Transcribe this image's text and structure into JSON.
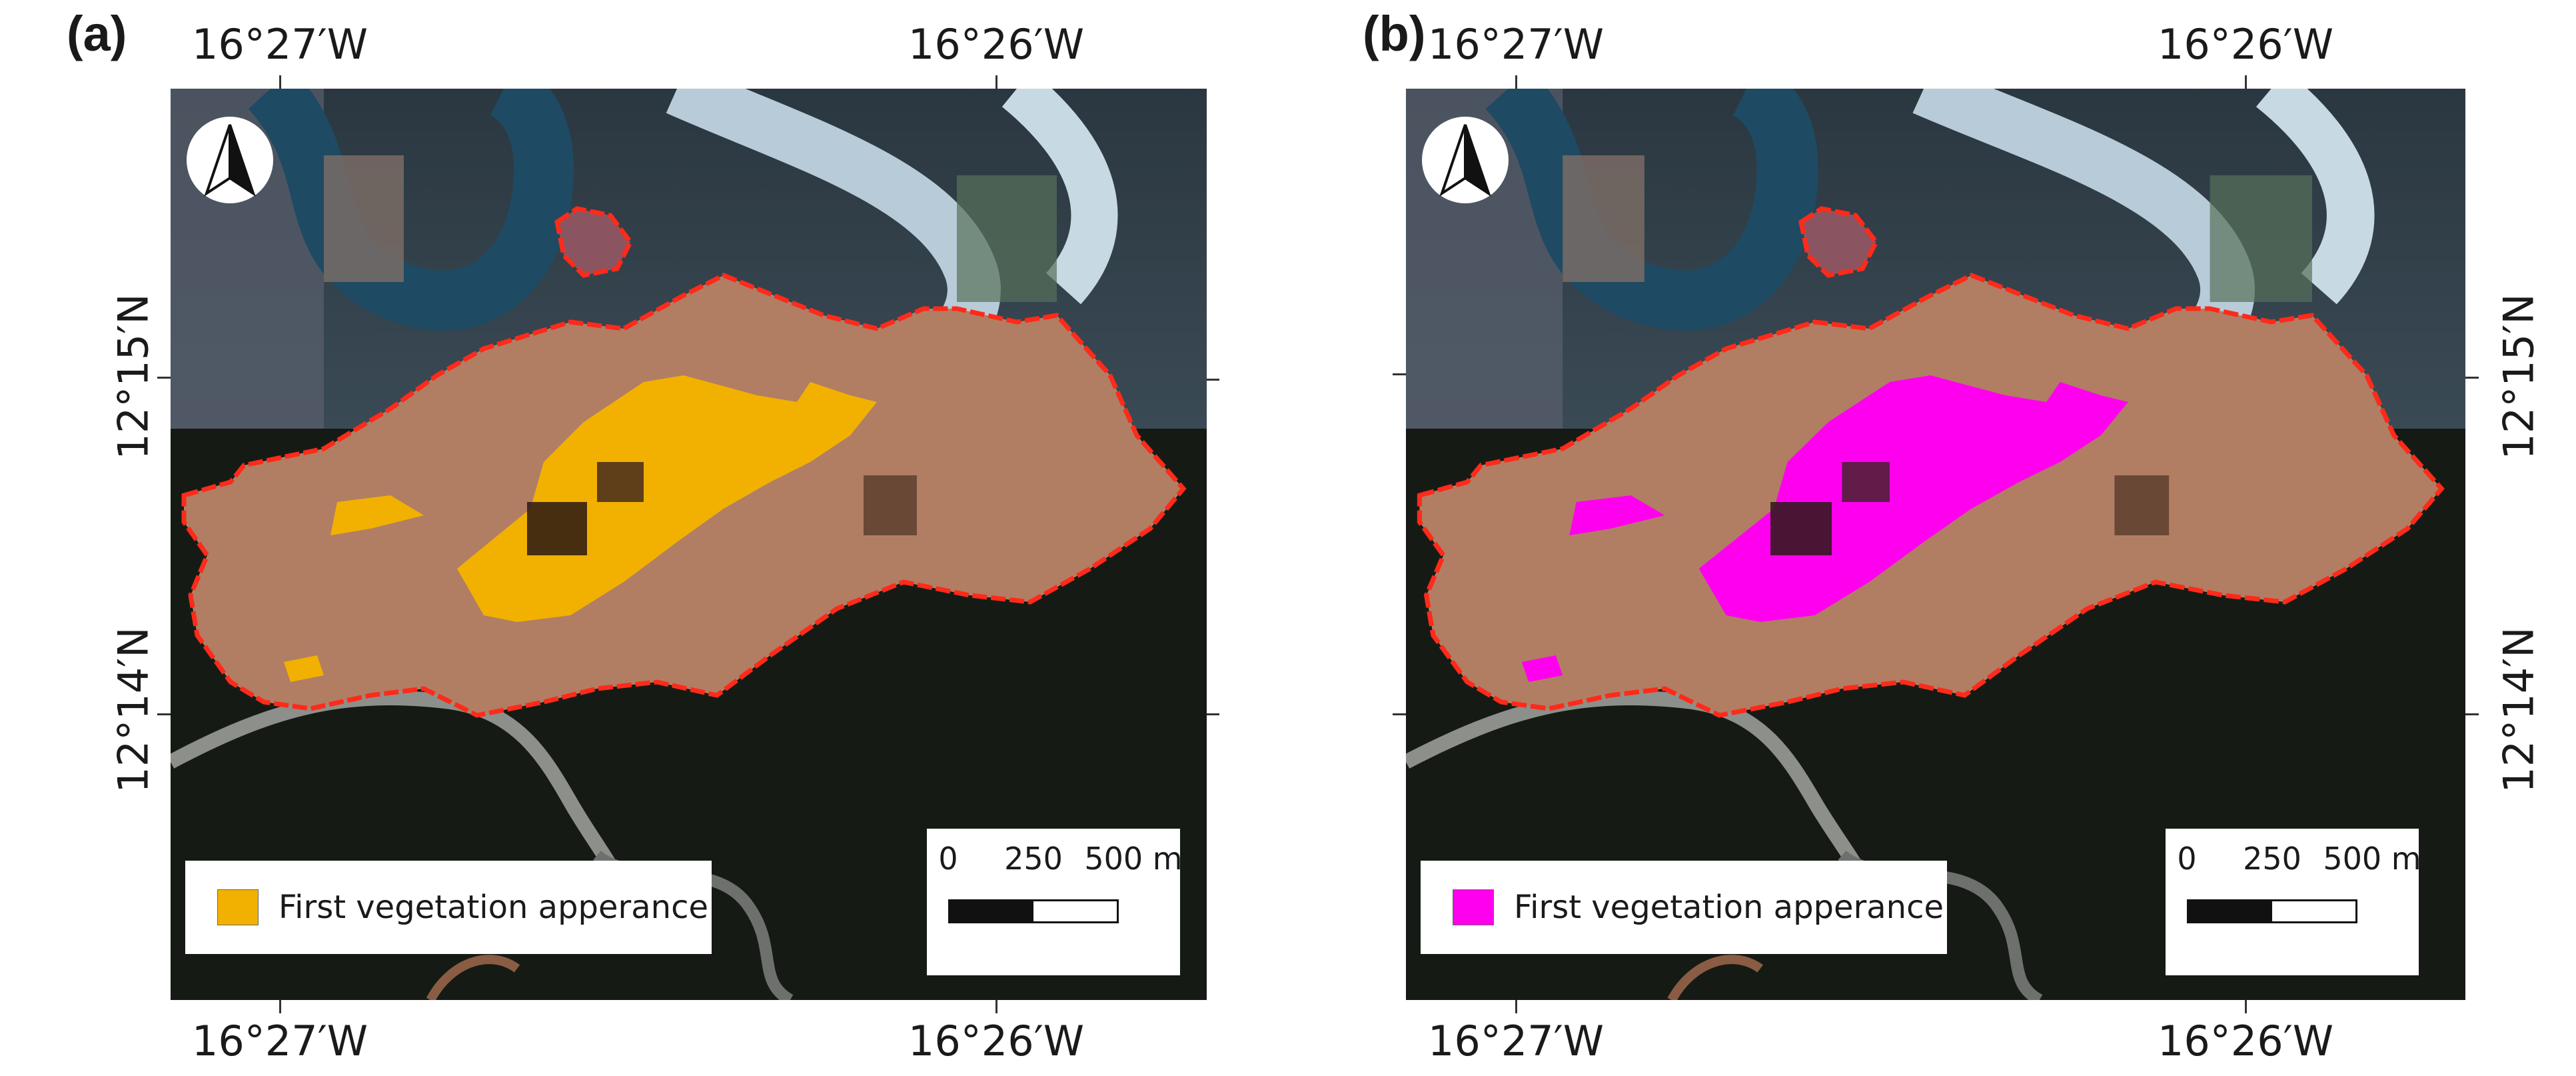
{
  "panels": [
    {
      "label": "(a)",
      "lon_west": "16°27′W",
      "lon_east": "16°26′W",
      "lat_north": "12°15′N",
      "lat_south": "12°14′N",
      "legend_label": "First vegetation apperance",
      "legend_color": "#f2b100",
      "scale": {
        "tick0": "0",
        "tick1": "250",
        "tick2": "500 m"
      }
    },
    {
      "label": "(b)",
      "lon_west": "16°27′W",
      "lon_east": "16°26′W",
      "lat_north": "12°15′N",
      "lat_south": "12°14′N",
      "legend_label": "First vegetation apperance",
      "legend_color": "#ff00ee",
      "scale": {
        "tick0": "0",
        "tick1": "250",
        "tick2": "500 m"
      }
    }
  ],
  "colors": {
    "boundary": "#ff2a1a",
    "river": "#a9c6d6",
    "forest": "#141a12",
    "cropland": "#b38062"
  },
  "icons": [
    "north-arrow-icon"
  ]
}
